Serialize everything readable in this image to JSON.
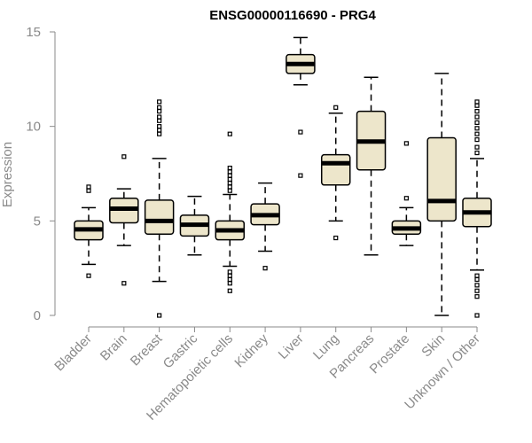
{
  "chart_data": {
    "type": "boxplot",
    "title": "ENSG00000116690 - PRG4",
    "xlabel": "",
    "ylabel": "Expression",
    "ylim": [
      0,
      15
    ],
    "yticks": [
      0,
      5,
      10,
      15
    ],
    "categories": [
      "Bladder",
      "Brain",
      "Breast",
      "Gastric",
      "Hematopoietic cells",
      "Kidney",
      "Liver",
      "Lung",
      "Pancreas",
      "Prostate",
      "Skin",
      "Unknown / Other"
    ],
    "boxes": [
      {
        "name": "Bladder",
        "lower_whisker": 2.7,
        "q1": 4.0,
        "median": 4.55,
        "q3": 5.0,
        "upper_whisker": 5.7,
        "outliers": [
          2.1,
          6.6,
          6.8
        ]
      },
      {
        "name": "Brain",
        "lower_whisker": 3.7,
        "q1": 4.9,
        "median": 5.65,
        "q3": 6.2,
        "upper_whisker": 6.7,
        "outliers": [
          1.7,
          8.4
        ]
      },
      {
        "name": "Breast",
        "lower_whisker": 1.8,
        "q1": 4.3,
        "median": 5.0,
        "q3": 6.1,
        "upper_whisker": 8.3,
        "outliers": [
          0.0,
          9.6,
          9.8,
          10.0,
          10.3,
          10.5,
          10.8,
          11.0,
          11.3
        ]
      },
      {
        "name": "Gastric",
        "lower_whisker": 3.2,
        "q1": 4.2,
        "median": 4.8,
        "q3": 5.3,
        "upper_whisker": 6.3,
        "outliers": []
      },
      {
        "name": "Hematopoietic cells",
        "lower_whisker": 2.6,
        "q1": 4.0,
        "median": 4.5,
        "q3": 5.0,
        "upper_whisker": 6.4,
        "outliers": [
          1.3,
          1.7,
          1.9,
          2.1,
          2.3,
          6.6,
          6.8,
          7.0,
          7.2,
          7.4,
          7.6,
          7.8,
          9.6
        ]
      },
      {
        "name": "Kidney",
        "lower_whisker": 3.4,
        "q1": 4.8,
        "median": 5.3,
        "q3": 5.9,
        "upper_whisker": 7.0,
        "outliers": [
          2.5
        ]
      },
      {
        "name": "Liver",
        "lower_whisker": 12.2,
        "q1": 12.8,
        "median": 13.3,
        "q3": 13.8,
        "upper_whisker": 14.7,
        "outliers": [
          7.4,
          9.7
        ]
      },
      {
        "name": "Lung",
        "lower_whisker": 5.0,
        "q1": 6.9,
        "median": 8.05,
        "q3": 8.5,
        "upper_whisker": 10.7,
        "outliers": [
          4.1,
          11.0
        ]
      },
      {
        "name": "Pancreas",
        "lower_whisker": 3.2,
        "q1": 7.7,
        "median": 9.2,
        "q3": 10.8,
        "upper_whisker": 12.6,
        "outliers": []
      },
      {
        "name": "Prostate",
        "lower_whisker": 3.7,
        "q1": 4.3,
        "median": 4.6,
        "q3": 5.0,
        "upper_whisker": 5.7,
        "outliers": [
          6.2,
          9.1
        ]
      },
      {
        "name": "Skin",
        "lower_whisker": 0.0,
        "q1": 5.0,
        "median": 6.05,
        "q3": 9.4,
        "upper_whisker": 12.8,
        "outliers": []
      },
      {
        "name": "Unknown / Other",
        "lower_whisker": 2.4,
        "q1": 4.7,
        "median": 5.45,
        "q3": 6.2,
        "upper_whisker": 8.3,
        "outliers": [
          0.0,
          1.0,
          1.3,
          1.6,
          1.9,
          2.1,
          8.6,
          8.9,
          9.3,
          9.6,
          9.9,
          10.2,
          10.5,
          10.8,
          11.1,
          11.3
        ]
      }
    ],
    "colors": {
      "box_fill": "#ede6cb",
      "axis": "#8a8a8a",
      "title": "#000000"
    }
  }
}
